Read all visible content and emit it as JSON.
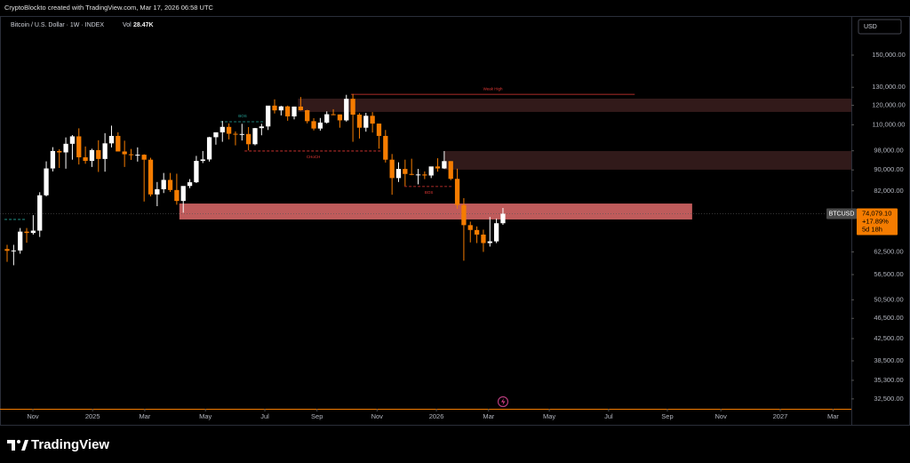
{
  "header": {
    "attribution": "CryptoBlockto created with TradingView.com, Mar 17, 2026 06:58 UTC"
  },
  "footer": {
    "brand": "TradingView"
  },
  "chart_data": {
    "type": "candlestick",
    "title": "Bitcoin / U.S. Dollar · 1W · INDEX",
    "volume_label": "Vol",
    "volume": "28.47K",
    "currency": "USD",
    "log_scale": true,
    "grid": false,
    "up_color": "#ffffff",
    "down_color": "#f57c00",
    "ylim": [
      31100,
      177100
    ],
    "yticks": [
      {
        "value": 150000,
        "label": "150,000.00"
      },
      {
        "value": 130000,
        "label": "130,000.00"
      },
      {
        "value": 120000,
        "label": "120,000.00"
      },
      {
        "value": 110000,
        "label": "110,000.00"
      },
      {
        "value": 98000,
        "label": "98,000.00"
      },
      {
        "value": 90000,
        "label": "90,000.00"
      },
      {
        "value": 82000,
        "label": "82,000.00"
      },
      {
        "value": 62500,
        "label": "62,500.00"
      },
      {
        "value": 56500,
        "label": "56,500.00"
      },
      {
        "value": 50500,
        "label": "50,500.00"
      },
      {
        "value": 46500,
        "label": "46,500.00"
      },
      {
        "value": 42500,
        "label": "42,500.00"
      },
      {
        "value": 38500,
        "label": "38,500.00"
      },
      {
        "value": 35300,
        "label": "35,300.00"
      },
      {
        "value": 32500,
        "label": "32,500.00"
      }
    ],
    "xlim": [
      -1.09,
      129.4
    ],
    "xticks": [
      {
        "value": 3.95,
        "label": "Nov"
      },
      {
        "value": 13.1,
        "label": "2025"
      },
      {
        "value": 21.1,
        "label": "Mar"
      },
      {
        "value": 30.4,
        "label": "May"
      },
      {
        "value": 39.5,
        "label": "Jul"
      },
      {
        "value": 47.5,
        "label": "Sep"
      },
      {
        "value": 56.7,
        "label": "Nov"
      },
      {
        "value": 65.8,
        "label": "2026"
      },
      {
        "value": 73.8,
        "label": "Mar"
      },
      {
        "value": 83.1,
        "label": "May"
      },
      {
        "value": 92.2,
        "label": "Jul"
      },
      {
        "value": 101.2,
        "label": "Sep"
      },
      {
        "value": 109.4,
        "label": "Nov"
      },
      {
        "value": 118.5,
        "label": "2027"
      },
      {
        "value": 126.6,
        "label": "Mar"
      }
    ],
    "candles": [
      [
        63300,
        64500,
        59800,
        62800
      ],
      [
        62800,
        64500,
        58900,
        62900
      ],
      [
        62900,
        69500,
        62000,
        68400
      ],
      [
        68400,
        69500,
        65100,
        68000
      ],
      [
        68000,
        73600,
        67500,
        68700
      ],
      [
        68700,
        81500,
        66800,
        80400
      ],
      [
        80400,
        93500,
        80000,
        90600
      ],
      [
        90600,
        99600,
        89400,
        97900
      ],
      [
        97900,
        98700,
        90800,
        97300
      ],
      [
        97300,
        104000,
        90500,
        101100
      ],
      [
        101100,
        105100,
        94200,
        104500
      ],
      [
        104500,
        108300,
        92200,
        95200
      ],
      [
        95200,
        99900,
        92500,
        93700
      ],
      [
        93700,
        98900,
        91200,
        98300
      ],
      [
        98300,
        102700,
        89200,
        94500
      ],
      [
        94500,
        106000,
        89300,
        101300
      ],
      [
        101300,
        109600,
        99500,
        104700
      ],
      [
        104700,
        106400,
        97800,
        97700
      ],
      [
        97700,
        102500,
        91200,
        96500
      ],
      [
        96500,
        98800,
        94100,
        96100
      ],
      [
        96100,
        99500,
        93400,
        96300
      ],
      [
        96300,
        96500,
        78200,
        94200
      ],
      [
        94200,
        95000,
        80000,
        80700
      ],
      [
        80700,
        85300,
        76600,
        82600
      ],
      [
        82600,
        88800,
        81200,
        86100
      ],
      [
        86100,
        88800,
        81600,
        82300
      ],
      [
        82300,
        88500,
        77100,
        78400
      ],
      [
        78400,
        83500,
        74400,
        83800
      ],
      [
        83800,
        86400,
        83000,
        85200
      ],
      [
        85200,
        95800,
        84900,
        93700
      ],
      [
        93700,
        97900,
        92800,
        94300
      ],
      [
        94300,
        104300,
        93400,
        104100
      ],
      [
        104100,
        105800,
        100700,
        106400
      ],
      [
        106400,
        111900,
        102000,
        109000
      ],
      [
        109000,
        110700,
        103100,
        105700
      ],
      [
        105700,
        106800,
        100400,
        105600
      ],
      [
        105600,
        110500,
        102600,
        105600
      ],
      [
        105600,
        108900,
        98200,
        100900
      ],
      [
        100900,
        108500,
        100400,
        108400
      ],
      [
        108400,
        110500,
        105000,
        109200
      ],
      [
        109200,
        119500,
        107500,
        119800
      ],
      [
        119800,
        123200,
        115700,
        117300
      ],
      [
        117300,
        119700,
        114700,
        119400
      ],
      [
        119400,
        119800,
        112000,
        114200
      ],
      [
        114200,
        119300,
        112700,
        119300
      ],
      [
        119300,
        124500,
        117200,
        117400
      ],
      [
        117400,
        117600,
        110700,
        111800
      ],
      [
        111800,
        113300,
        107300,
        108200
      ],
      [
        108200,
        113400,
        107200,
        111100
      ],
      [
        111100,
        116800,
        110600,
        115300
      ],
      [
        115300,
        117900,
        114800,
        115200
      ],
      [
        115200,
        115200,
        108600,
        112200
      ],
      [
        112200,
        125700,
        111600,
        123500
      ],
      [
        123500,
        126200,
        102000,
        115100
      ],
      [
        115100,
        115900,
        103500,
        108600
      ],
      [
        108600,
        116000,
        106700,
        114500
      ],
      [
        114500,
        116400,
        106300,
        110600
      ],
      [
        110600,
        110600,
        98900,
        104700
      ],
      [
        104700,
        107500,
        93000,
        94200
      ],
      [
        94200,
        96600,
        80600,
        86800
      ],
      [
        86800,
        93100,
        85300,
        90400
      ],
      [
        90400,
        94200,
        83800,
        88400
      ],
      [
        88400,
        94600,
        87900,
        88200
      ],
      [
        88200,
        90400,
        84400,
        88200
      ],
      [
        88200,
        89400,
        86400,
        87800
      ],
      [
        87800,
        91200,
        86800,
        91400
      ],
      [
        91400,
        94800,
        89300,
        90600
      ],
      [
        90600,
        97900,
        90400,
        93600
      ],
      [
        93600,
        93600,
        86000,
        86500
      ],
      [
        86500,
        90500,
        75700,
        77000
      ],
      [
        77000,
        79400,
        60100,
        70400
      ],
      [
        70400,
        71500,
        65200,
        68900
      ],
      [
        68900,
        70000,
        65000,
        67500
      ],
      [
        67500,
        69000,
        62500,
        65000
      ],
      [
        65000,
        73000,
        64000,
        65500
      ],
      [
        65500,
        72500,
        65000,
        71000
      ],
      [
        71000,
        76000,
        70500,
        74079.1
      ]
    ],
    "zones": [
      {
        "x": [
          44.6,
          129.4
        ],
        "y": [
          116500,
          123600
        ],
        "color": "#3b1e1e"
      },
      {
        "x": [
          67.0,
          129.4
        ],
        "y": [
          90100,
          97900
        ],
        "color": "#3a1e1e"
      },
      {
        "x": [
          26.4,
          105.0
        ],
        "y": [
          72200,
          77500
        ],
        "color": "#e06b6b"
      }
    ],
    "levels": [
      {
        "label": "Weak High",
        "price": 126000,
        "x": [
          52.7,
          96.2
        ],
        "color": "#e53935",
        "dashed": false,
        "label_side": "above"
      },
      {
        "label": "BOS",
        "price": 111500,
        "x": [
          32.7,
          39.5
        ],
        "color": "#26a69a",
        "dashed": true,
        "label_side": "above"
      },
      {
        "label": "CHoCH",
        "price": 97900,
        "x": [
          36.4,
          57.5
        ],
        "color": "#e53935",
        "dashed": true,
        "label_side": "below"
      },
      {
        "label": "BOS",
        "price": 83600,
        "x": [
          60.9,
          68.4
        ],
        "color": "#e53935",
        "dashed": true,
        "label_side": "below"
      },
      {
        "price": 72200,
        "x": [
          -0.4,
          3.0
        ],
        "color": "#26a69a",
        "dashed": true
      }
    ],
    "last_price": {
      "symbol": "BTCUSD",
      "value": 74079.1,
      "label": "74,079.10",
      "change": "+17.89%",
      "countdown": "5d 18h",
      "color": "#f57c00"
    }
  }
}
